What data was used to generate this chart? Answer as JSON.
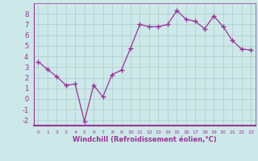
{
  "x": [
    0,
    1,
    2,
    3,
    4,
    5,
    6,
    7,
    8,
    9,
    10,
    11,
    12,
    13,
    14,
    15,
    16,
    17,
    18,
    19,
    20,
    21,
    22,
    23
  ],
  "y": [
    3.5,
    2.8,
    2.1,
    1.3,
    1.4,
    -2.1,
    1.3,
    0.2,
    2.3,
    2.7,
    4.8,
    7.0,
    6.8,
    6.8,
    7.0,
    8.3,
    7.5,
    7.3,
    6.6,
    7.8,
    6.8,
    5.5,
    4.7,
    4.6
  ],
  "line_color": "#993399",
  "marker": "D",
  "marker_size": 2.5,
  "bg_color": "#cde8e8",
  "grid_color": "#aacccc",
  "xlabel": "Windchill (Refroidissement éolien,°C)",
  "xlabel_color": "#993399",
  "tick_color": "#993399",
  "ylim": [
    -2.5,
    9.0
  ],
  "xlim": [
    -0.5,
    23.5
  ],
  "yticks": [
    -2,
    -1,
    0,
    1,
    2,
    3,
    4,
    5,
    6,
    7,
    8
  ],
  "xticks": [
    0,
    1,
    2,
    3,
    4,
    5,
    6,
    7,
    8,
    9,
    10,
    11,
    12,
    13,
    14,
    15,
    16,
    17,
    18,
    19,
    20,
    21,
    22,
    23
  ],
  "spine_color": "#993399"
}
